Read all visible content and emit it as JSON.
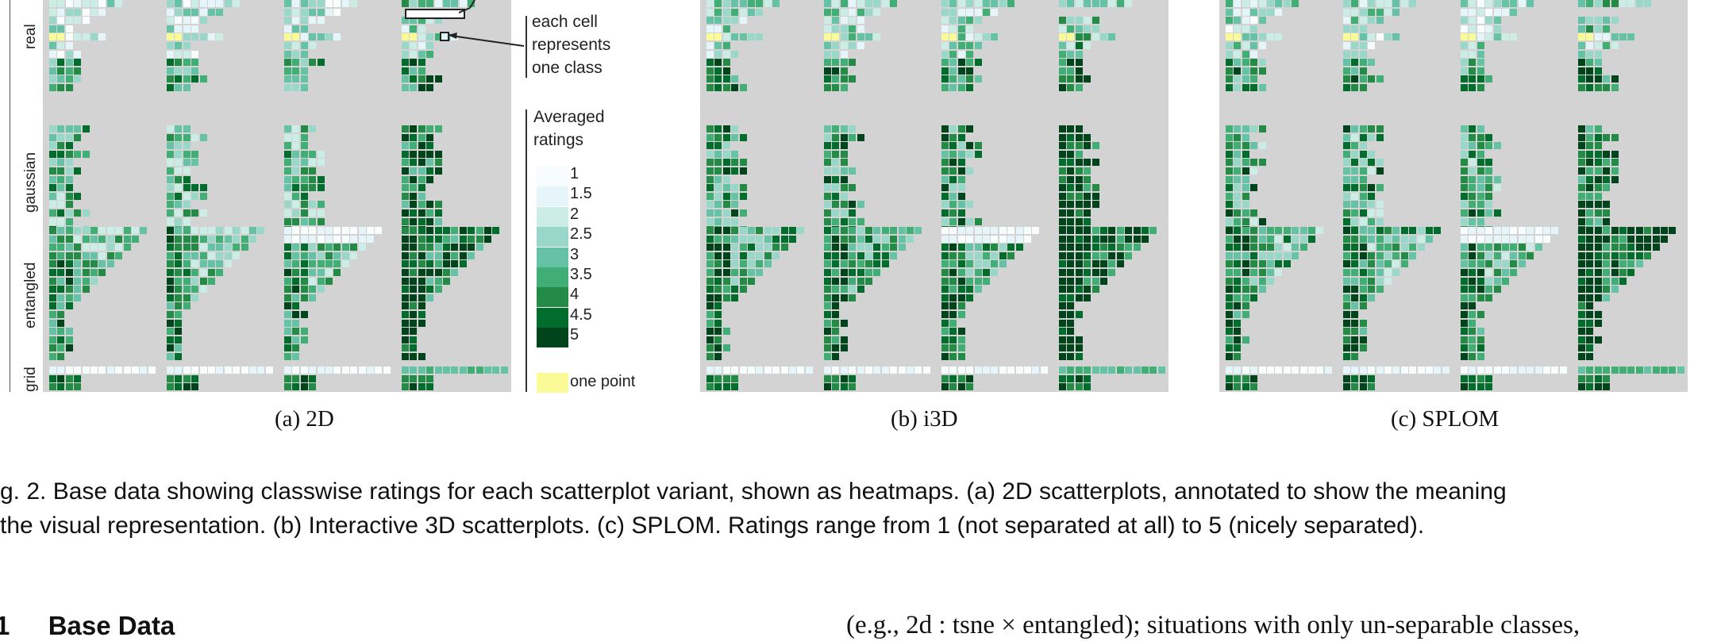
{
  "figure": {
    "row_labels": [
      "real",
      "gaussian",
      "entangled",
      "grid"
    ],
    "annotation_text": [
      "each cell",
      "represents",
      "one class"
    ],
    "legend": {
      "title": [
        "Averaged",
        "ratings"
      ],
      "items": [
        {
          "label": "1",
          "color": "#f7fcfd"
        },
        {
          "label": "1.5",
          "color": "#e5f5f9"
        },
        {
          "label": "2",
          "color": "#ccece6"
        },
        {
          "label": "2.5",
          "color": "#99d8c9"
        },
        {
          "label": "3",
          "color": "#66c2a4"
        },
        {
          "label": "3.5",
          "color": "#41ae76"
        },
        {
          "label": "4",
          "color": "#238b45"
        },
        {
          "label": "4.5",
          "color": "#006d2c"
        },
        {
          "label": "5",
          "color": "#00441b"
        }
      ],
      "one_point_label": "one point",
      "one_point_color": "#fafa96"
    },
    "panel_background": "#d3d3d3",
    "subcaptions": [
      "(a)  2D",
      "(b)  i3D",
      "(c)  SPLOM"
    ]
  },
  "caption": {
    "line1": "g. 2.  Base data showing classwise ratings for each scatterplot variant, shown as heatmaps. (a) 2D scatterplots, annotated to show the meaning",
    "line2": " the visual representation. (b) Interactive 3D scatterplots. (c) SPLOM. Ratings range from 1 (not separated at all) to 5 (nicely separated)."
  },
  "section": {
    "number": "1",
    "title": "Base Data"
  },
  "body_text": "(e.g., 2d : tsne × entangled); situations with only un-separable classes,"
}
